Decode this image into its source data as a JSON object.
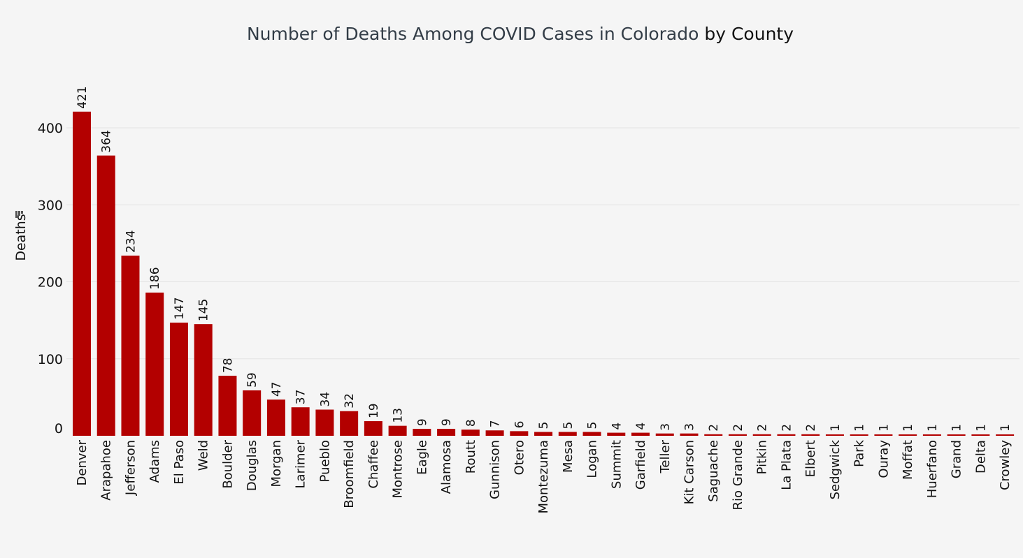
{
  "chart_data": {
    "type": "bar",
    "title": "Number of Deaths Among COVID Cases in Colorado",
    "title_suffix": "by County",
    "ylabel": "Deaths",
    "xlabel": "",
    "ylim": [
      0,
      440
    ],
    "yticks": [
      0,
      100,
      200,
      300,
      400
    ],
    "grid": true,
    "bar_color": "#b30000",
    "categories": [
      "Denver",
      "Arapahoe",
      "Jefferson",
      "Adams",
      "El Paso",
      "Weld",
      "Boulder",
      "Douglas",
      "Morgan",
      "Larimer",
      "Pueblo",
      "Broomfield",
      "Chaffee",
      "Montrose",
      "Eagle",
      "Alamosa",
      "Routt",
      "Gunnison",
      "Otero",
      "Montezuma",
      "Mesa",
      "Logan",
      "Summit",
      "Garfield",
      "Teller",
      "Kit Carson",
      "Saguache",
      "Rio Grande",
      "Pitkin",
      "La Plata",
      "Elbert",
      "Sedgwick",
      "Park",
      "Ouray",
      "Moffat",
      "Huerfano",
      "Grand",
      "Delta",
      "Crowley"
    ],
    "values": [
      421,
      364,
      234,
      186,
      147,
      145,
      78,
      59,
      47,
      37,
      34,
      32,
      19,
      13,
      9,
      9,
      8,
      7,
      6,
      5,
      5,
      5,
      4,
      4,
      3,
      3,
      2,
      2,
      2,
      2,
      2,
      1,
      1,
      1,
      1,
      1,
      1,
      1,
      1
    ]
  }
}
